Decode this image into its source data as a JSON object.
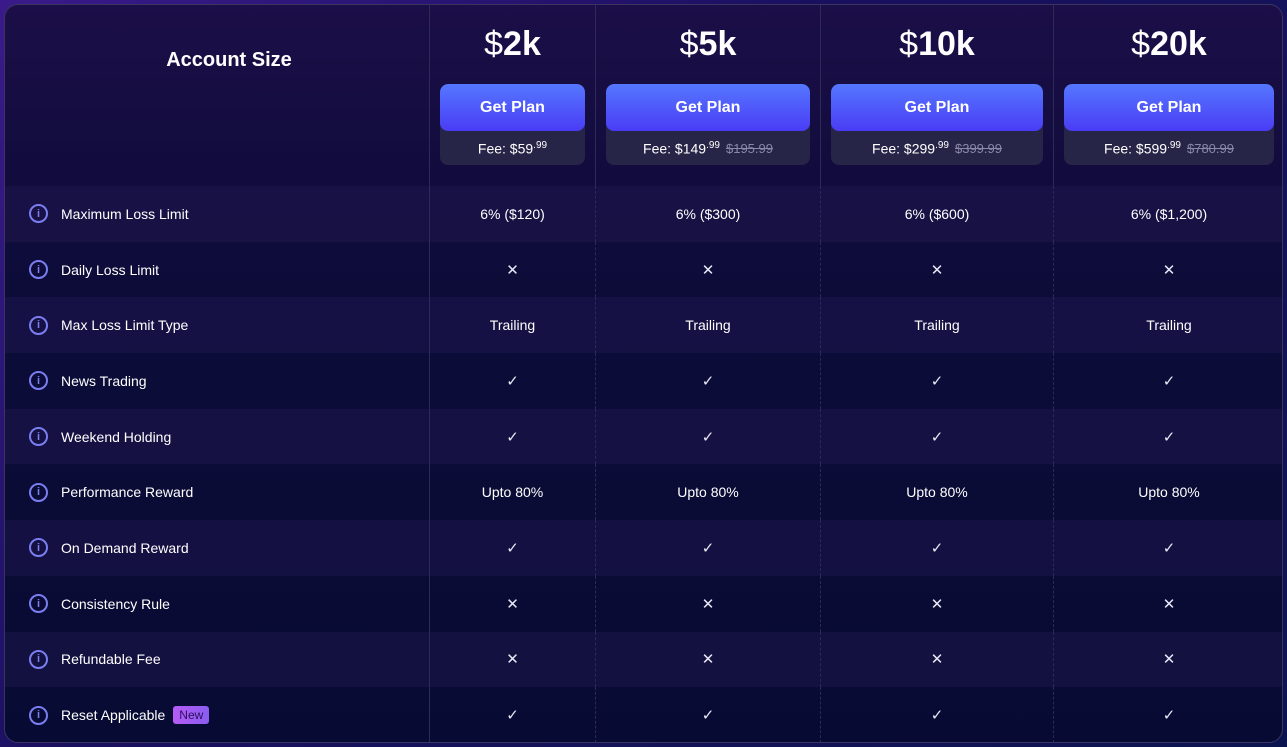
{
  "header": {
    "label": "Account Size",
    "currency": "$"
  },
  "plans": [
    {
      "size": "2k",
      "button": "Get Plan",
      "fee_label": "Fee: $59",
      "fee_cents": ".99",
      "old_price": ""
    },
    {
      "size": "5k",
      "button": "Get Plan",
      "fee_label": "Fee: $149",
      "fee_cents": ".99",
      "old_price": "$195.99"
    },
    {
      "size": "10k",
      "button": "Get Plan",
      "fee_label": "Fee: $299",
      "fee_cents": ".99",
      "old_price": "$399.99"
    },
    {
      "size": "20k",
      "button": "Get Plan",
      "fee_label": "Fee: $599",
      "fee_cents": ".99",
      "old_price": "$780.99"
    }
  ],
  "rows": [
    {
      "label": "Maximum Loss Limit",
      "values": [
        "6% ($120)",
        "6% ($300)",
        "6% ($600)",
        "6% ($1,200)"
      ]
    },
    {
      "label": "Daily Loss Limit",
      "values": [
        "✕",
        "✕",
        "✕",
        "✕"
      ]
    },
    {
      "label": "Max Loss Limit Type",
      "values": [
        "Trailing",
        "Trailing",
        "Trailing",
        "Trailing"
      ]
    },
    {
      "label": "News Trading",
      "values": [
        "✓",
        "✓",
        "✓",
        "✓"
      ]
    },
    {
      "label": "Weekend Holding",
      "values": [
        "✓",
        "✓",
        "✓",
        "✓"
      ]
    },
    {
      "label": "Performance Reward",
      "values": [
        "Upto 80%",
        "Upto 80%",
        "Upto 80%",
        "Upto 80%"
      ]
    },
    {
      "label": "On Demand Reward",
      "values": [
        "✓",
        "✓",
        "✓",
        "✓"
      ]
    },
    {
      "label": "Consistency Rule",
      "values": [
        "✕",
        "✕",
        "✕",
        "✕"
      ]
    },
    {
      "label": "Refundable Fee",
      "values": [
        "✕",
        "✕",
        "✕",
        "✕"
      ]
    },
    {
      "label": "Reset Applicable",
      "badge": "New",
      "values": [
        "✓",
        "✓",
        "✓",
        "✓"
      ]
    }
  ],
  "info_icon": "i",
  "colors": {
    "accent": "#4a5cff",
    "badge": "#a85cf5"
  }
}
